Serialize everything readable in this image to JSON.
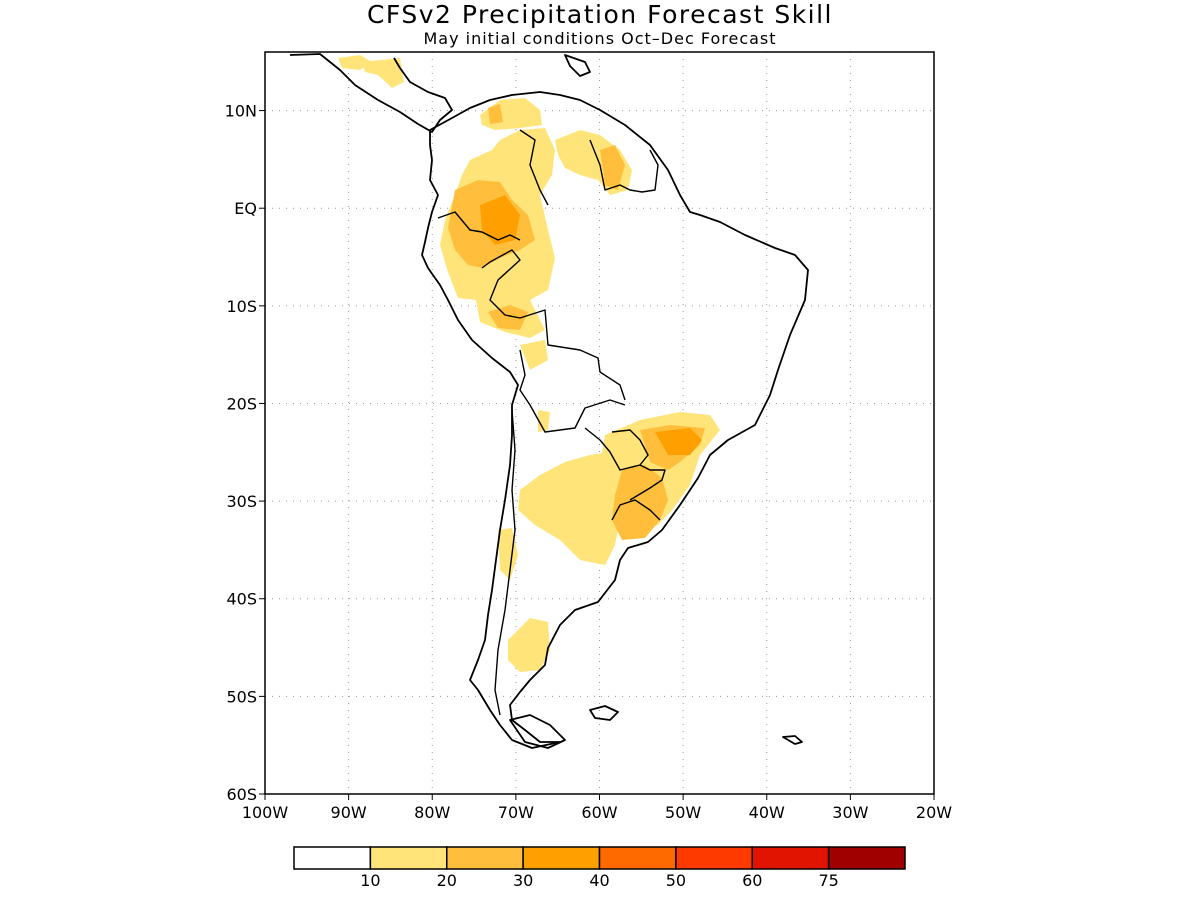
{
  "title": "CFSv2 Precipitation Forecast Skill",
  "subtitle": "May initial conditions  Oct–Dec Forecast",
  "map": {
    "lon_range": [
      -100,
      -20
    ],
    "lat_range": [
      -60,
      16
    ],
    "grid": true,
    "lat_labels": [
      {
        "lat": 10,
        "label": "10N"
      },
      {
        "lat": 0,
        "label": "EQ"
      },
      {
        "lat": -10,
        "label": "10S"
      },
      {
        "lat": -20,
        "label": "20S"
      },
      {
        "lat": -30,
        "label": "30S"
      },
      {
        "lat": -40,
        "label": "40S"
      },
      {
        "lat": -50,
        "label": "50S"
      },
      {
        "lat": -60,
        "label": "60S"
      }
    ],
    "lon_labels": [
      {
        "lon": -100,
        "label": "100W"
      },
      {
        "lon": -90,
        "label": "90W"
      },
      {
        "lon": -80,
        "label": "80W"
      },
      {
        "lon": -70,
        "label": "70W"
      },
      {
        "lon": -60,
        "label": "60W"
      },
      {
        "lon": -50,
        "label": "50W"
      },
      {
        "lon": -40,
        "label": "40W"
      },
      {
        "lon": -30,
        "label": "30W"
      },
      {
        "lon": -20,
        "label": "20W"
      }
    ]
  },
  "legend": {
    "colors": [
      "#ffffff",
      "#ffe47a",
      "#ffbf3c",
      "#ff9f00",
      "#ff6a00",
      "#ff3a00",
      "#e01400",
      "#a00000"
    ],
    "labels": [
      "10",
      "20",
      "30",
      "40",
      "50",
      "60",
      "75"
    ]
  }
}
